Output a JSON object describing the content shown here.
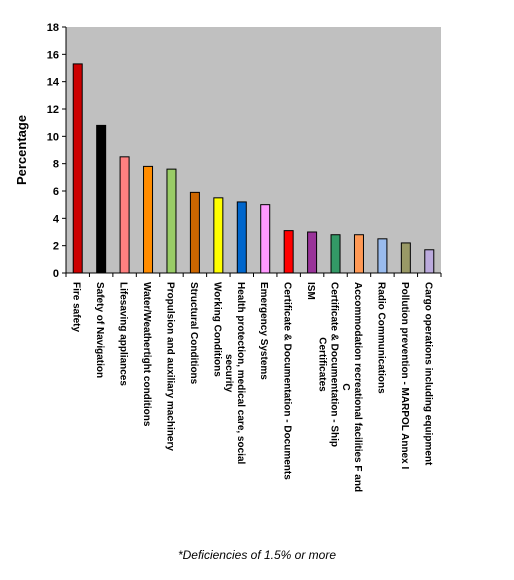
{
  "chart_data": {
    "type": "bar",
    "title": "",
    "xlabel": "",
    "ylabel": "Percentage",
    "ylim": [
      0,
      18
    ],
    "yticks": [
      0,
      2,
      4,
      6,
      8,
      10,
      12,
      14,
      16,
      18
    ],
    "plot_background": "#c0c0c0",
    "grid": false,
    "legend": "none",
    "categories": [
      [
        "Fire safety"
      ],
      [
        "Safety of Navigation"
      ],
      [
        "Lifesaving appliances"
      ],
      [
        "Water/Weathertight conditions"
      ],
      [
        "Propulsion and auxiliary machinery"
      ],
      [
        "Structural Conditions"
      ],
      [
        "Working Conditions"
      ],
      [
        "Health protection, medical care, social",
        "security"
      ],
      [
        "Emergency Systems"
      ],
      [
        "Certificate & Documentation - Documents"
      ],
      [
        "ISM"
      ],
      [
        "Certificate & Documentation - Ship",
        "Certificates"
      ],
      [
        "Accommodation recreational facilities F and",
        "C"
      ],
      [
        "Radio Communications"
      ],
      [
        "Pollution prevention - MARPOL Annex I"
      ],
      [
        "Cargo operations including equipment"
      ]
    ],
    "values": [
      15.3,
      10.8,
      8.5,
      7.8,
      7.6,
      5.9,
      5.5,
      5.2,
      5.0,
      3.1,
      3.0,
      2.8,
      2.8,
      2.5,
      2.2,
      1.7
    ],
    "colors": [
      "#cc0000",
      "#000000",
      "#ff8080",
      "#ff8c00",
      "#99cc66",
      "#cc6600",
      "#ffff00",
      "#0066cc",
      "#ff99ff",
      "#ff0000",
      "#993399",
      "#339966",
      "#ff9955",
      "#99bbee",
      "#999966",
      "#bbaadd"
    ]
  },
  "footnote": "*Deficiencies of 1.5% or more"
}
